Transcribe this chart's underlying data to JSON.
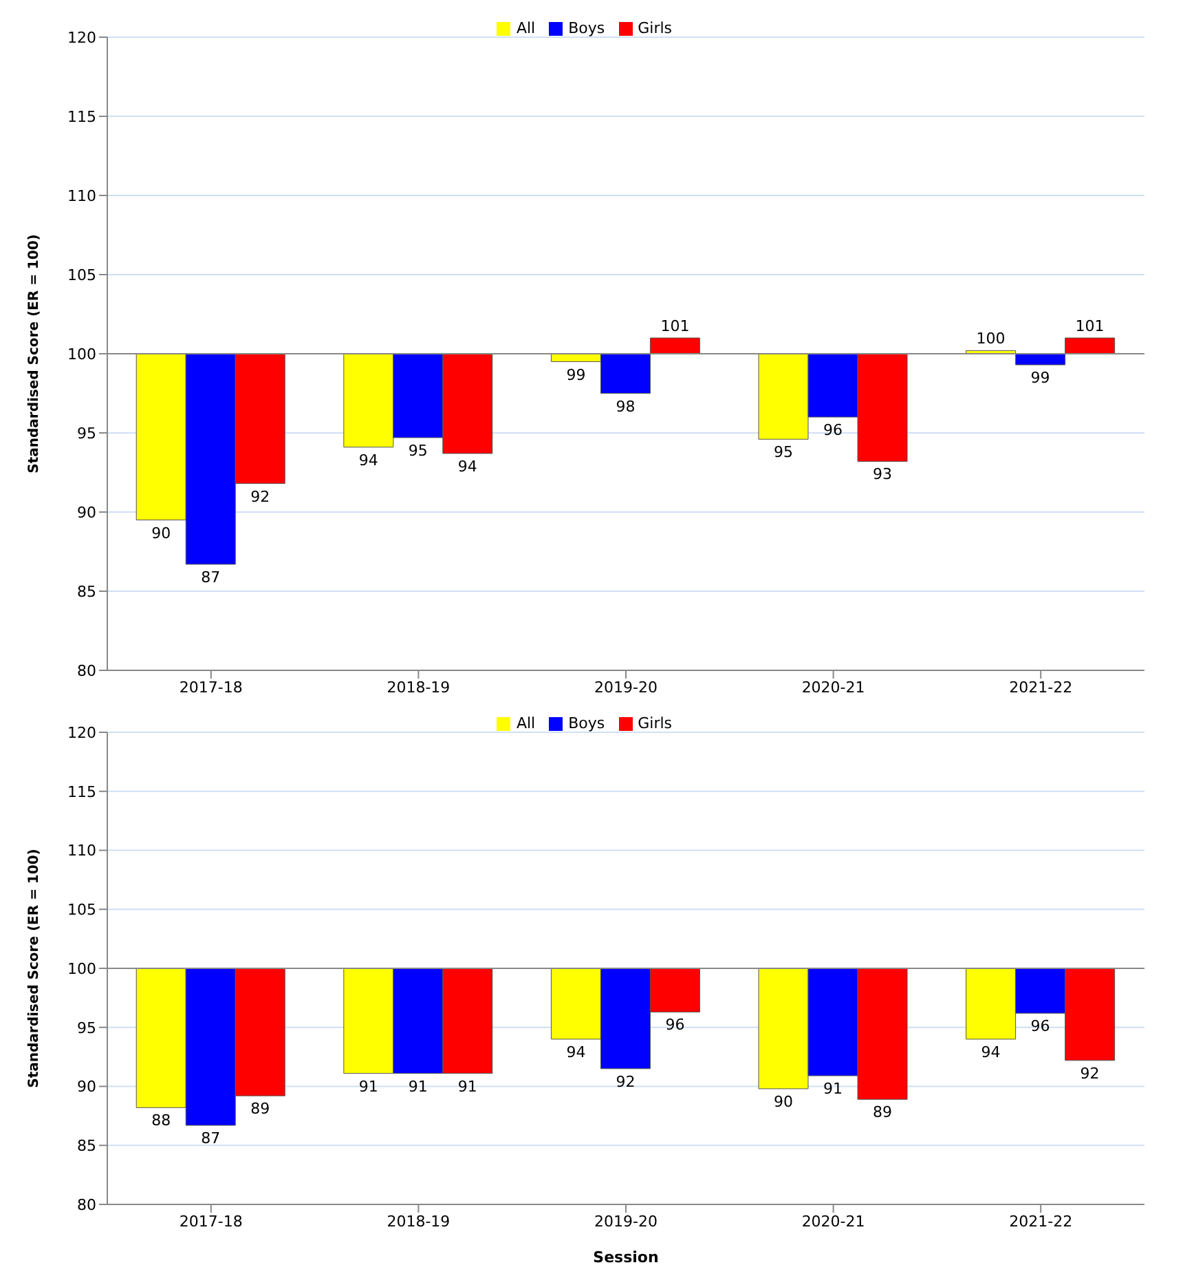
{
  "chart_data": [
    {
      "type": "bar",
      "ylabel": "Standardised Score (ER = 100)",
      "categories": [
        "2017-18",
        "2018-19",
        "2019-20",
        "2020-21",
        "2021-22"
      ],
      "series": [
        {
          "name": "All",
          "color": "#ffff00",
          "base": [
            100,
            100,
            100,
            100,
            100
          ],
          "values": [
            -10.5,
            -5.9,
            -0.5,
            -5.4,
            0.2
          ],
          "value_labels": [
            "90",
            "94",
            "99",
            "95",
            "100"
          ]
        },
        {
          "name": "Boys",
          "color": "#0000ff",
          "base": [
            100,
            100,
            100,
            100,
            100
          ],
          "values": [
            -13.3,
            -5.3,
            -2.5,
            -4.0,
            -0.7
          ],
          "value_labels": [
            "87",
            "95",
            "98",
            "96",
            "99"
          ]
        },
        {
          "name": "Girls",
          "color": "#ff0000",
          "base": [
            100,
            100,
            100,
            100,
            100
          ],
          "values": [
            -8.2,
            -6.3,
            1.0,
            -6.8,
            1.0
          ],
          "value_labels": [
            "92",
            "94",
            "101",
            "93",
            "101"
          ]
        }
      ],
      "ylim": [
        80,
        120
      ],
      "yticks": [
        80,
        85,
        90,
        95,
        100,
        105,
        110,
        115,
        120
      ],
      "grid": "y",
      "legend": "top",
      "ref_lines": [
        {
          "axis": "y",
          "value": 100
        }
      ]
    },
    {
      "type": "bar",
      "xlabel": "Session",
      "ylabel": "Standardised Score (ER = 100)",
      "categories": [
        "2017-18",
        "2018-19",
        "2019-20",
        "2020-21",
        "2021-22"
      ],
      "series": [
        {
          "name": "All",
          "color": "#ffff00",
          "base": [
            100,
            100,
            100,
            100,
            100
          ],
          "values": [
            -11.8,
            -8.9,
            -6.0,
            -10.2,
            -6.0
          ],
          "value_labels": [
            "88",
            "91",
            "94",
            "90",
            "94"
          ]
        },
        {
          "name": "Boys",
          "color": "#0000ff",
          "base": [
            100,
            100,
            100,
            100,
            100
          ],
          "values": [
            -13.3,
            -8.9,
            -8.5,
            -9.1,
            -3.8
          ],
          "value_labels": [
            "87",
            "91",
            "92",
            "91",
            "96"
          ]
        },
        {
          "name": "Girls",
          "color": "#ff0000",
          "base": [
            100,
            100,
            100,
            100,
            100
          ],
          "values": [
            -10.8,
            -8.9,
            -3.7,
            -11.1,
            -7.8
          ],
          "value_labels": [
            "89",
            "91",
            "96",
            "89",
            "92"
          ]
        }
      ],
      "ylim": [
        80,
        120
      ],
      "yticks": [
        80,
        85,
        90,
        95,
        100,
        105,
        110,
        115,
        120
      ],
      "grid": "y",
      "legend": "top",
      "ref_lines": [
        {
          "axis": "y",
          "value": 100
        }
      ]
    }
  ]
}
